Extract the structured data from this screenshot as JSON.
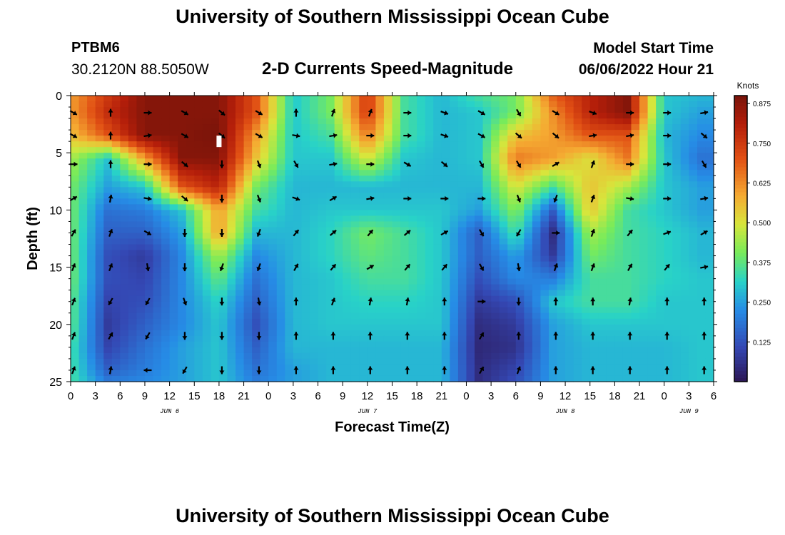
{
  "header": {
    "title": "University of Southern Mississippi Ocean Cube",
    "station": "PTBM6",
    "coordinates": "30.2120N  88.5050W",
    "subtitle": "2-D Currents Speed-Magnitude",
    "model_start_label": "Model Start Time",
    "model_start_value": "06/06/2022 Hour 21"
  },
  "footer": {
    "title": "University of Southern Mississippi Ocean Cube"
  },
  "chart_data": {
    "type": "heatmap",
    "title": "2-D Currents Speed-Magnitude",
    "xlabel": "Forecast Time(Z)",
    "ylabel": "Depth (ft)",
    "xlim": [
      0,
      78
    ],
    "ylim": [
      0,
      25
    ],
    "x_ticks": [
      0,
      3,
      6,
      9,
      12,
      15,
      18,
      21,
      24,
      27,
      30,
      33,
      36,
      39,
      42,
      45,
      48,
      51,
      54,
      57,
      60,
      63,
      66,
      69,
      72,
      75,
      78
    ],
    "x_tick_labels": [
      "0",
      "3",
      "6",
      "9",
      "12",
      "15",
      "18",
      "21",
      "0",
      "3",
      "6",
      "9",
      "12",
      "15",
      "18",
      "21",
      "0",
      "3",
      "6",
      "9",
      "12",
      "15",
      "18",
      "21",
      "0",
      "3",
      "6"
    ],
    "y_ticks": [
      0,
      5,
      10,
      15,
      20,
      25
    ],
    "y_tick_labels": [
      "0",
      "5",
      "10",
      "15",
      "20",
      "25"
    ],
    "date_labels": [
      {
        "x": 12,
        "label": "JUN 6"
      },
      {
        "x": 36,
        "label": "JUN 7"
      },
      {
        "x": 60,
        "label": "JUN 8"
      },
      {
        "x": 75,
        "label": "JUN 9"
      }
    ],
    "colorbar": {
      "label": "Knots",
      "min": 0.0,
      "max": 0.9,
      "ticks": [
        0.875,
        0.75,
        0.625,
        0.5,
        0.375,
        0.25,
        0.125
      ],
      "tick_labels": [
        "0.875",
        "0.750",
        "0.625",
        "0.500",
        "0.375",
        "0.250",
        "0.125"
      ]
    },
    "grid_times": [
      0,
      4.5,
      9,
      13.5,
      18,
      22.5,
      27,
      31.5,
      36,
      40.5,
      45,
      49.5,
      54,
      58.5,
      63,
      67.5,
      72,
      76.5
    ],
    "grid_depths": [
      0,
      1.5,
      3.5,
      5.5,
      8,
      10,
      12,
      14,
      16,
      18,
      20,
      22,
      24,
      25
    ],
    "speed_knots": [
      [
        0.6,
        0.75,
        0.88,
        0.88,
        0.88,
        0.7,
        0.3,
        0.4,
        0.75,
        0.35,
        0.28,
        0.35,
        0.4,
        0.68,
        0.8,
        0.88,
        0.3,
        0.28
      ],
      [
        0.6,
        0.78,
        0.88,
        0.88,
        0.88,
        0.7,
        0.3,
        0.4,
        0.75,
        0.35,
        0.28,
        0.3,
        0.4,
        0.62,
        0.8,
        0.88,
        0.3,
        0.25
      ],
      [
        0.55,
        0.7,
        0.88,
        0.88,
        0.9,
        0.6,
        0.3,
        0.35,
        0.65,
        0.35,
        0.28,
        0.3,
        0.55,
        0.6,
        0.7,
        0.7,
        0.28,
        0.22
      ],
      [
        0.45,
        0.3,
        0.6,
        0.88,
        0.88,
        0.55,
        0.3,
        0.3,
        0.5,
        0.3,
        0.28,
        0.3,
        0.65,
        0.6,
        0.5,
        0.65,
        0.3,
        0.18
      ],
      [
        0.4,
        0.25,
        0.3,
        0.7,
        0.8,
        0.4,
        0.28,
        0.28,
        0.28,
        0.28,
        0.28,
        0.28,
        0.5,
        0.35,
        0.55,
        0.45,
        0.3,
        0.25
      ],
      [
        0.4,
        0.18,
        0.2,
        0.3,
        0.6,
        0.35,
        0.28,
        0.3,
        0.3,
        0.3,
        0.3,
        0.25,
        0.42,
        0.15,
        0.55,
        0.35,
        0.3,
        0.25
      ],
      [
        0.4,
        0.15,
        0.15,
        0.25,
        0.6,
        0.28,
        0.28,
        0.32,
        0.4,
        0.35,
        0.3,
        0.15,
        0.35,
        0.05,
        0.45,
        0.35,
        0.32,
        0.28
      ],
      [
        0.4,
        0.12,
        0.08,
        0.22,
        0.45,
        0.22,
        0.28,
        0.32,
        0.38,
        0.35,
        0.3,
        0.15,
        0.25,
        0.08,
        0.4,
        0.35,
        0.32,
        0.28
      ],
      [
        0.4,
        0.12,
        0.1,
        0.22,
        0.38,
        0.18,
        0.28,
        0.3,
        0.35,
        0.35,
        0.3,
        0.12,
        0.22,
        0.2,
        0.35,
        0.35,
        0.32,
        0.3
      ],
      [
        0.38,
        0.1,
        0.12,
        0.22,
        0.32,
        0.15,
        0.28,
        0.3,
        0.32,
        0.32,
        0.3,
        0.08,
        0.12,
        0.3,
        0.35,
        0.35,
        0.3,
        0.3
      ],
      [
        0.38,
        0.08,
        0.15,
        0.22,
        0.3,
        0.12,
        0.28,
        0.3,
        0.3,
        0.3,
        0.3,
        0.05,
        0.08,
        0.25,
        0.3,
        0.3,
        0.3,
        0.3
      ],
      [
        0.35,
        0.1,
        0.18,
        0.25,
        0.3,
        0.15,
        0.28,
        0.28,
        0.28,
        0.28,
        0.28,
        0.04,
        0.06,
        0.25,
        0.28,
        0.28,
        0.28,
        0.3
      ],
      [
        0.35,
        0.15,
        0.2,
        0.25,
        0.3,
        0.18,
        0.25,
        0.28,
        0.28,
        0.28,
        0.28,
        0.05,
        0.1,
        0.25,
        0.28,
        0.28,
        0.28,
        0.3
      ],
      [
        0.35,
        0.2,
        0.22,
        0.25,
        0.3,
        0.2,
        0.25,
        0.28,
        0.28,
        0.28,
        0.28,
        0.05,
        0.12,
        0.25,
        0.28,
        0.28,
        0.28,
        0.3
      ]
    ],
    "arrow_times": [
      0,
      4.5,
      9,
      13.5,
      18,
      22.5,
      27,
      31.5,
      36,
      40.5,
      45,
      49.5,
      54,
      58.5,
      63,
      67.5,
      72,
      76.5
    ],
    "arrow_depths": [
      1.5,
      3.5,
      6,
      9,
      12,
      15,
      18,
      21,
      24
    ],
    "arrow_directions_deg": [
      [
        120,
        0,
        90,
        120,
        130,
        120,
        0,
        20,
        20,
        90,
        110,
        120,
        150,
        120,
        110,
        90,
        90,
        80
      ],
      [
        120,
        0,
        80,
        120,
        130,
        120,
        100,
        80,
        90,
        90,
        110,
        120,
        130,
        130,
        80,
        80,
        90,
        130
      ],
      [
        90,
        0,
        90,
        130,
        180,
        160,
        150,
        80,
        90,
        120,
        130,
        150,
        150,
        60,
        20,
        90,
        90,
        150
      ],
      [
        60,
        10,
        100,
        130,
        180,
        160,
        110,
        60,
        80,
        90,
        90,
        90,
        160,
        200,
        20,
        100,
        90,
        80
      ],
      [
        30,
        20,
        120,
        180,
        180,
        200,
        40,
        50,
        40,
        50,
        60,
        150,
        210,
        90,
        20,
        40,
        70,
        60
      ],
      [
        20,
        20,
        170,
        180,
        200,
        200,
        30,
        40,
        60,
        40,
        40,
        150,
        170,
        20,
        20,
        30,
        40,
        80
      ],
      [
        20,
        210,
        210,
        160,
        180,
        170,
        0,
        20,
        10,
        10,
        0,
        90,
        180,
        0,
        0,
        10,
        0,
        0
      ],
      [
        20,
        30,
        210,
        180,
        180,
        180,
        0,
        0,
        0,
        0,
        0,
        30,
        0,
        0,
        0,
        0,
        0,
        0
      ],
      [
        20,
        10,
        270,
        210,
        180,
        180,
        0,
        0,
        0,
        0,
        0,
        30,
        20,
        0,
        0,
        0,
        0,
        0
      ]
    ],
    "marker": {
      "x": 18,
      "y": 4,
      "color": "#ffffff"
    }
  }
}
